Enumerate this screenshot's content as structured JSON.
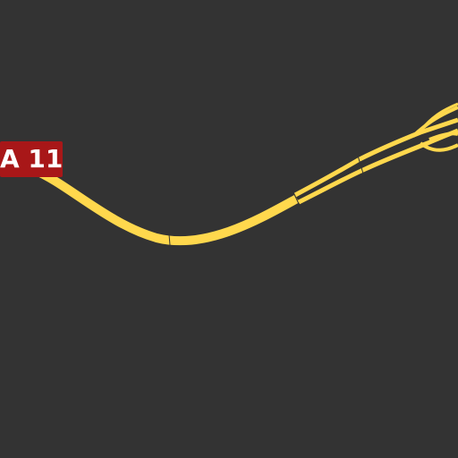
{
  "map": {
    "background_color": "#333333",
    "road_color": "#ffd84d",
    "road_casing_color": "#333333",
    "shield": {
      "label": "A 11",
      "background_color": "#a81718",
      "text_color": "#ffffff"
    }
  }
}
